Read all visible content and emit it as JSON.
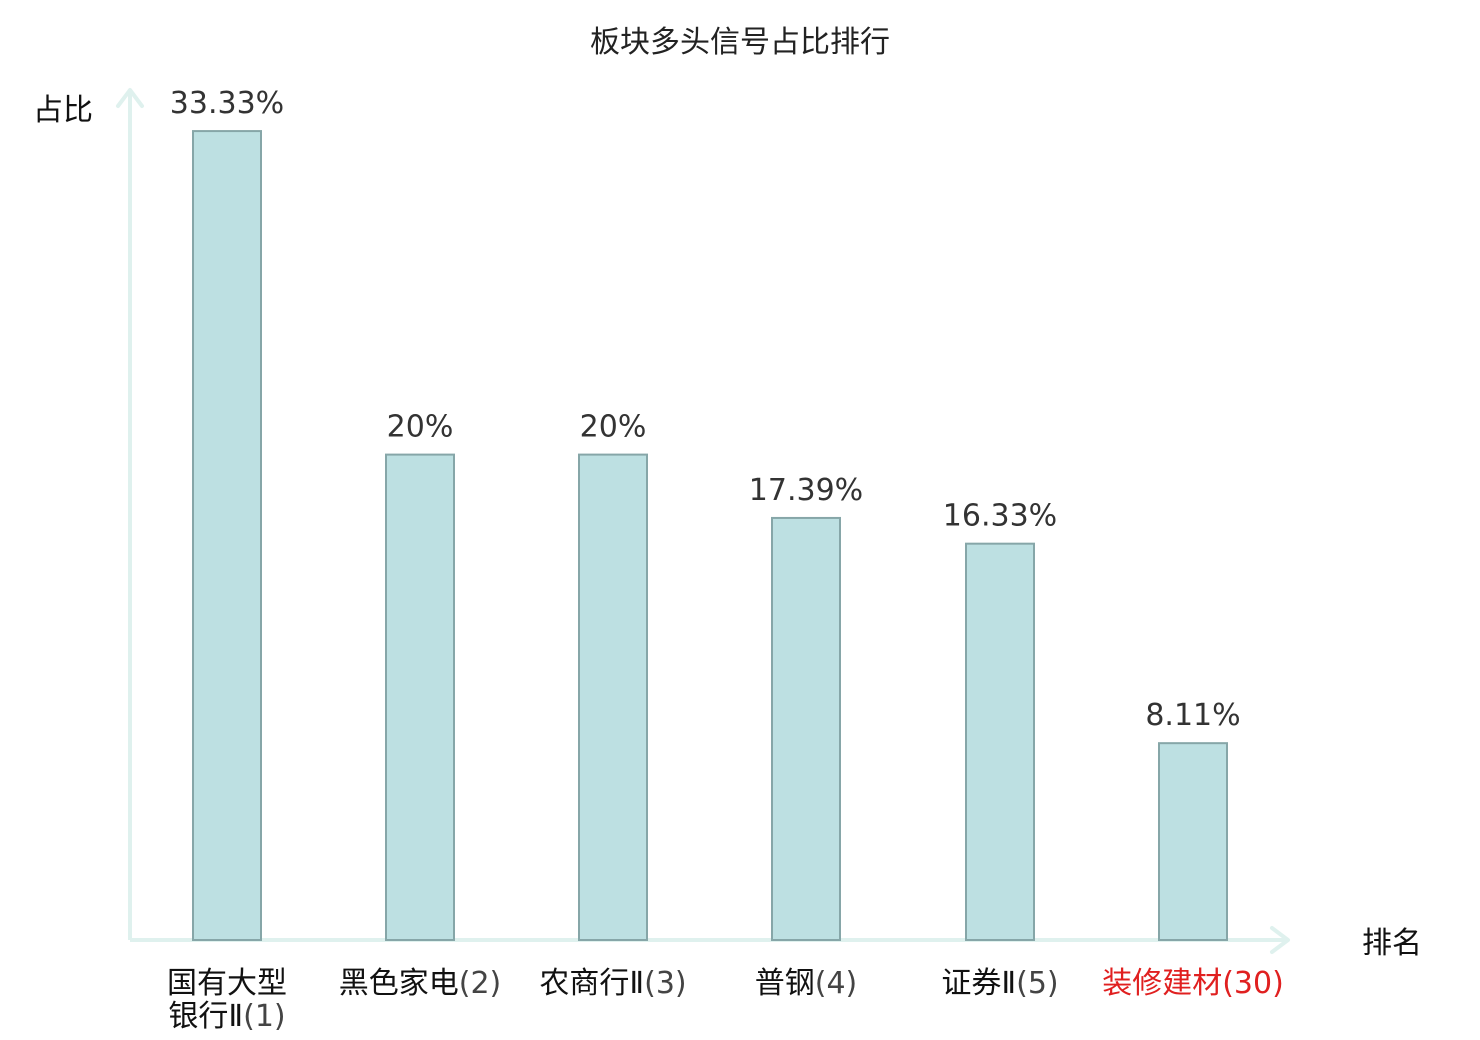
{
  "chart_data": {
    "type": "bar",
    "title": "板块多头信号占比排行",
    "ylabel": "占比",
    "xlabel": "排名",
    "categories": [
      {
        "name_lines": [
          "国有大型",
          "银行Ⅱ"
        ],
        "rank": "(1)",
        "highlight": false
      },
      {
        "name_lines": [
          "黑色家电"
        ],
        "rank": "(2)",
        "highlight": false
      },
      {
        "name_lines": [
          "农商行Ⅱ"
        ],
        "rank": "(3)",
        "highlight": false
      },
      {
        "name_lines": [
          "普钢"
        ],
        "rank": "(4)",
        "highlight": false
      },
      {
        "name_lines": [
          "证券Ⅱ"
        ],
        "rank": "(5)",
        "highlight": false
      },
      {
        "name_lines": [
          "装修建材"
        ],
        "rank": "(30)",
        "highlight": true
      }
    ],
    "values": [
      33.33,
      20,
      20,
      17.39,
      16.33,
      8.11
    ],
    "value_labels": [
      "33.33%",
      "20%",
      "20%",
      "17.39%",
      "16.33%",
      "8.11%"
    ],
    "ylim": [
      0,
      35
    ],
    "grid": false,
    "colors": {
      "bar_fill": "#bde0e2",
      "bar_stroke": "#86a6a8",
      "axis": "#dff1ee",
      "label_text": "#111111",
      "rank_text": "#444444",
      "highlight": "#e02020"
    }
  }
}
